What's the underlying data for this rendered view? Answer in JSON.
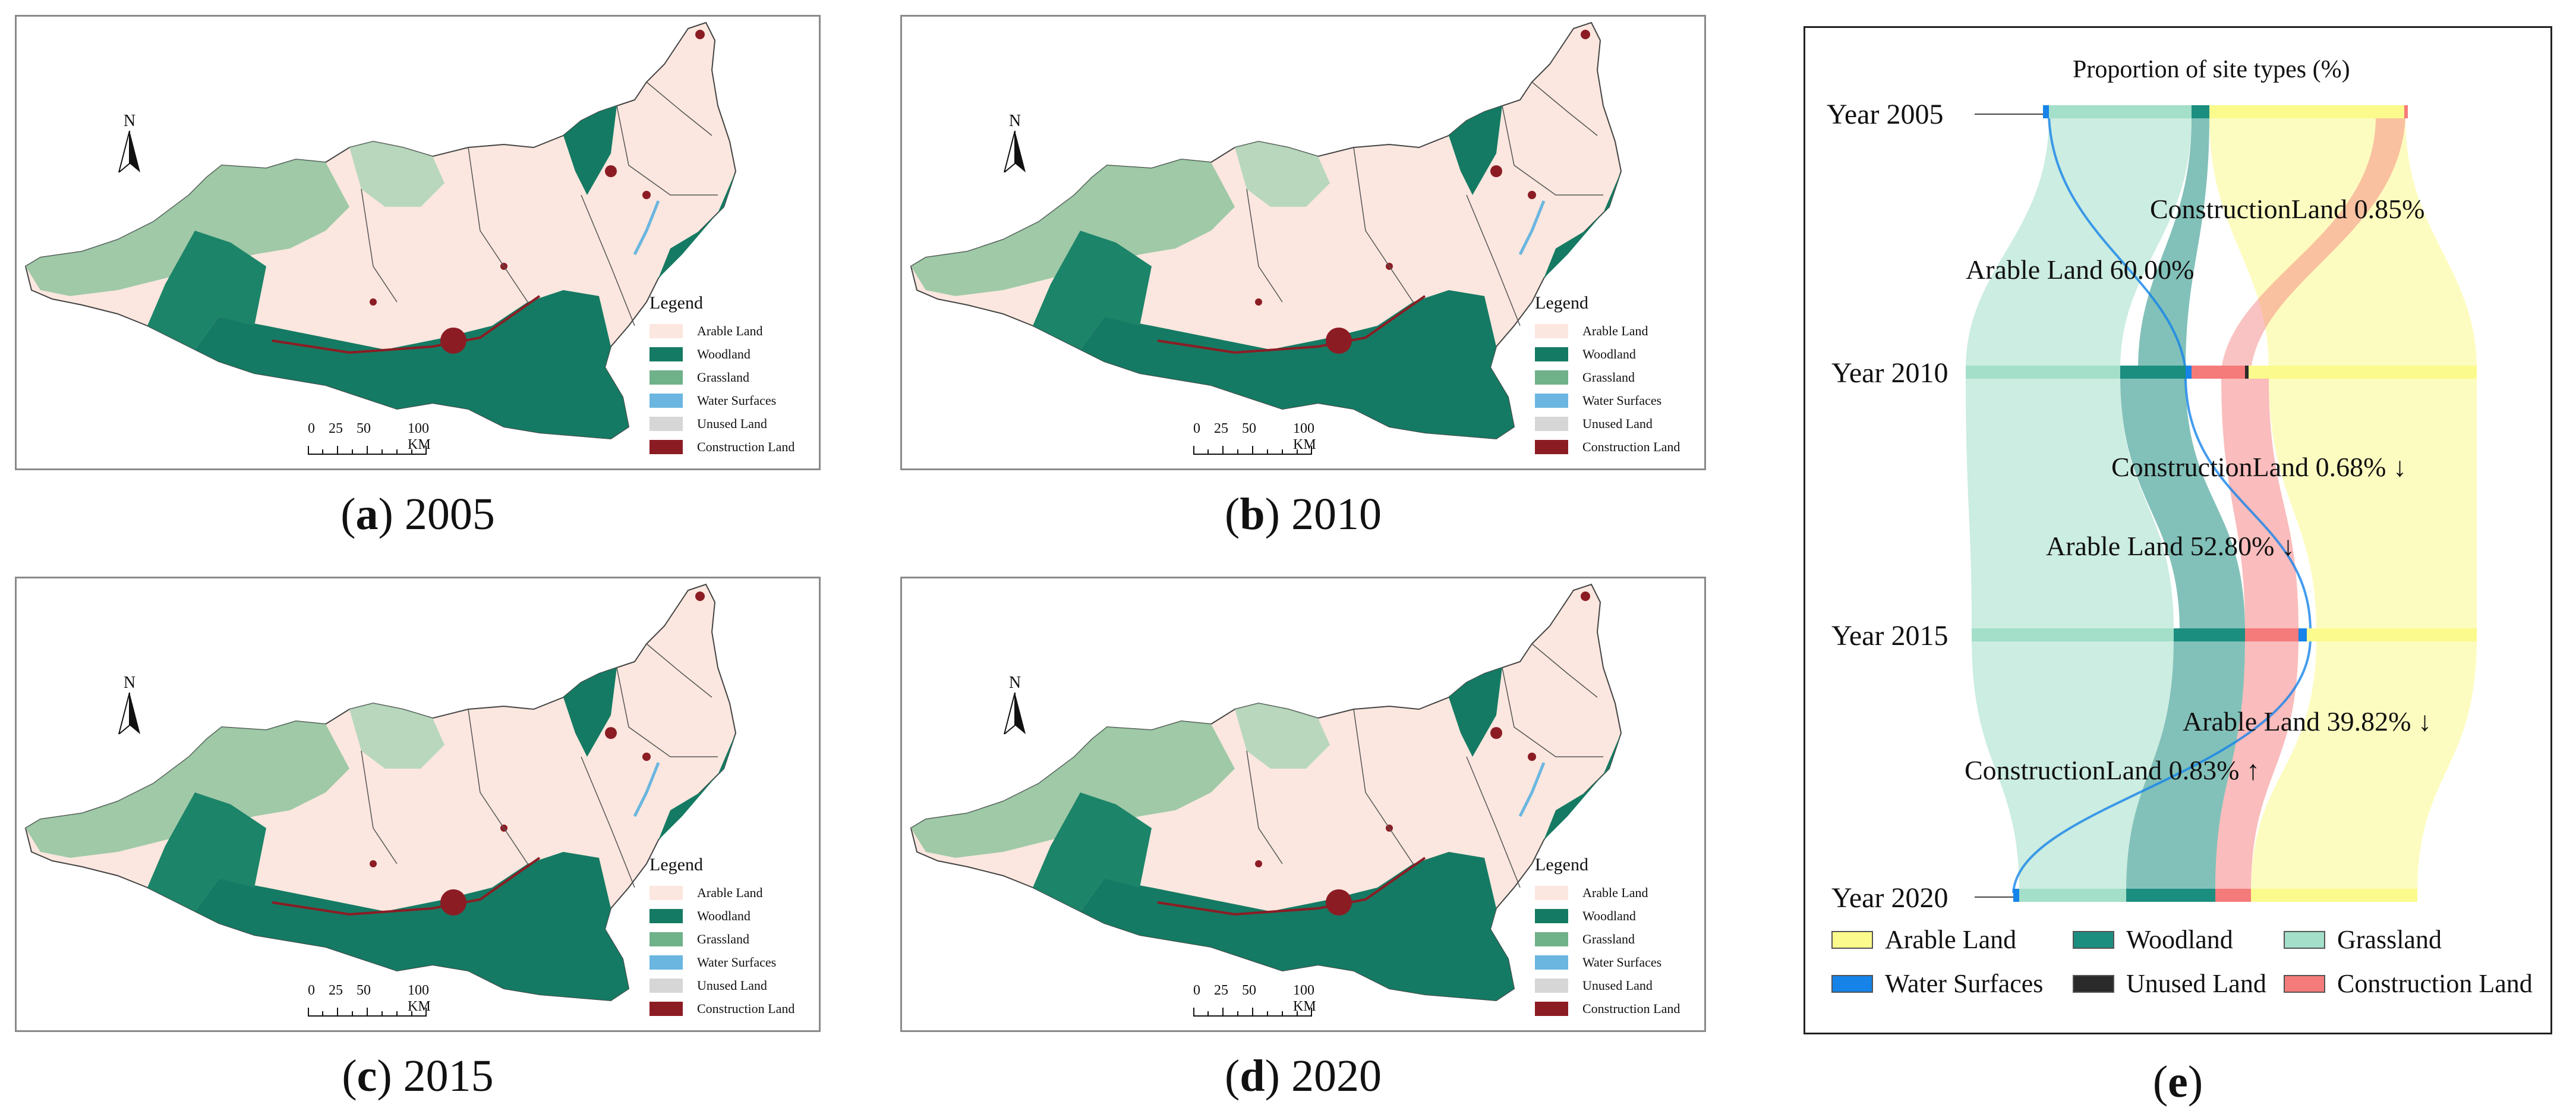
{
  "map_panels": [
    {
      "letter": "a",
      "year": "2005"
    },
    {
      "letter": "b",
      "year": "2010"
    },
    {
      "letter": "c",
      "year": "2015"
    },
    {
      "letter": "d",
      "year": "2020"
    }
  ],
  "north_label": "N",
  "legend": {
    "title": "Legend",
    "items": [
      {
        "label": "Arable Land",
        "color": "#fbe7df"
      },
      {
        "label": "Woodland",
        "color": "#157a63"
      },
      {
        "label": "Grassland",
        "color": "#6fb189"
      },
      {
        "label": "Water Surfaces",
        "color": "#6bb6e0"
      },
      {
        "label": "Unused Land",
        "color": "#d6d6d6"
      },
      {
        "label": "Construction Land",
        "color": "#8c1c24"
      }
    ]
  },
  "scale_bar": {
    "ticks": [
      "0",
      "25",
      "50",
      "100 KM"
    ]
  },
  "sankey": {
    "caption_letter": "e",
    "title": "Proportion of site types (%)",
    "years": [
      "Year 2005",
      "Year 2010",
      "Year 2015",
      "Year 2020"
    ],
    "annotations": [
      "ConstructionLand 0.85%",
      "Arable Land 60.00%",
      "ConstructionLand 0.68% ↓",
      "Arable Land 52.80% ↓",
      "Arable Land 39.82% ↓",
      "ConstructionLand 0.83% ↑"
    ],
    "legend": [
      {
        "label": "Arable Land",
        "color": "#fbfa8c"
      },
      {
        "label": "Woodland",
        "color": "#1b8e80"
      },
      {
        "label": "Grassland",
        "color": "#a3dfc9"
      },
      {
        "label": "Water Surfaces",
        "color": "#1583e8"
      },
      {
        "label": "Unused Land",
        "color": "#2a2a2a"
      },
      {
        "label": "Construction Land",
        "color": "#f57a7a"
      }
    ]
  }
}
